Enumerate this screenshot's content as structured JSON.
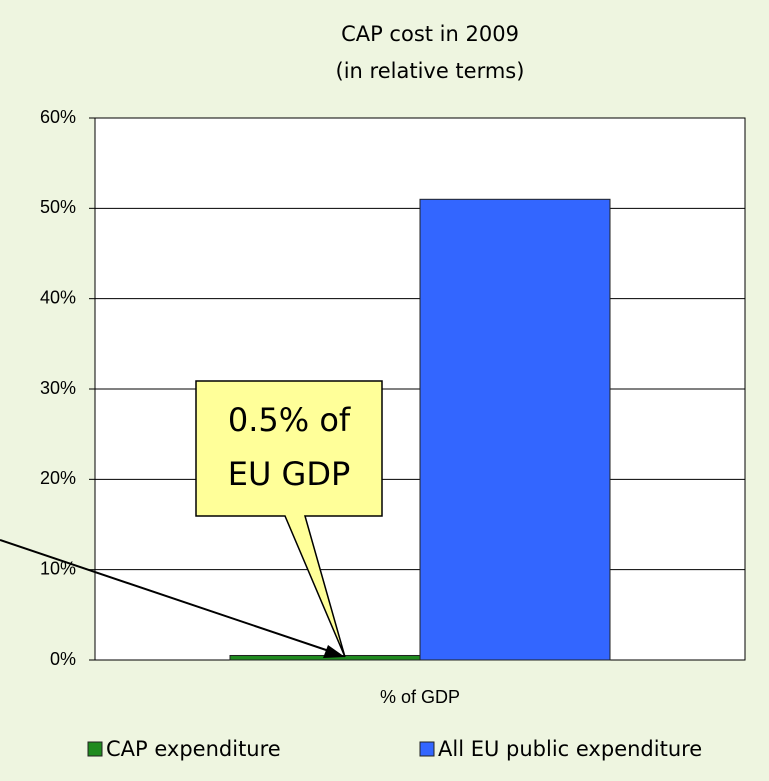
{
  "chart_data": {
    "type": "bar",
    "title": "CAP cost in 2009",
    "subtitle": "(in relative terms)",
    "categories": [
      "% of GDP"
    ],
    "series": [
      {
        "name": "CAP expenditure",
        "color": "#1f8a1f",
        "values": [
          0.5
        ]
      },
      {
        "name": "All EU public expenditure",
        "color": "#3366ff",
        "values": [
          51
        ]
      }
    ],
    "ylim": [
      0,
      60
    ],
    "yticks": [
      {
        "value": 0,
        "label": "0%"
      },
      {
        "value": 10,
        "label": "10%"
      },
      {
        "value": 20,
        "label": "20%"
      },
      {
        "value": 30,
        "label": "30%"
      },
      {
        "value": 40,
        "label": "40%"
      },
      {
        "value": 50,
        "label": "50%"
      },
      {
        "value": 60,
        "label": "60%"
      }
    ],
    "grid": true,
    "legend": "bottom",
    "annotation": [
      "0.5% of",
      "EU GDP"
    ]
  }
}
